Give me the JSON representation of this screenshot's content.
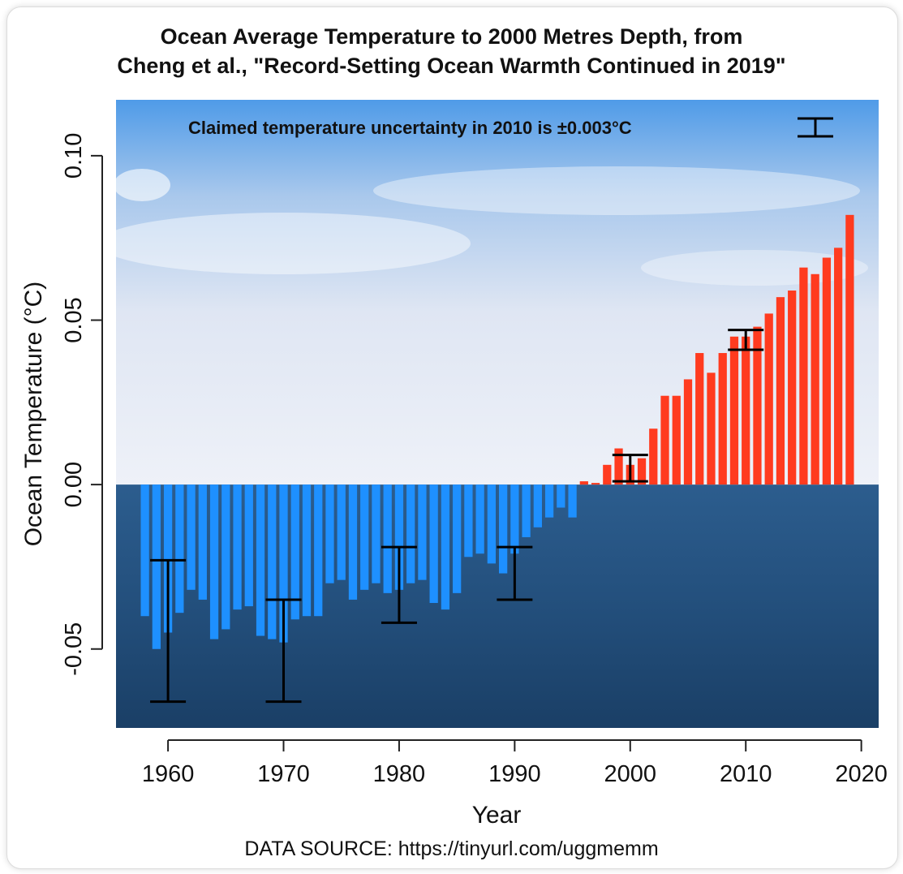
{
  "header": {
    "title_line1": "Ocean Average Temperature to 2000 Metres Depth, from",
    "title_line2": "Cheng et al., \"Record-Setting Ocean Warmth Continued in 2019\""
  },
  "footer": {
    "source": "DATA SOURCE: https://tinyurl.com/uggmemm"
  },
  "chart_data": {
    "type": "bar",
    "xlabel": "Year",
    "ylabel": "Ocean Temperature (°C)",
    "annotation": "Claimed temperature uncertainty in 2010 is ±0.003°C",
    "xlim": [
      1955.5,
      2021.5
    ],
    "ylim": [
      -0.074,
      0.117
    ],
    "xticks": [
      1960,
      1970,
      1980,
      1990,
      2000,
      2010,
      2020
    ],
    "yticks": [
      -0.05,
      0.0,
      0.05,
      0.1
    ],
    "ytick_labels": [
      "-0.05",
      "0.00",
      "0.05",
      "0.10"
    ],
    "colors": {
      "negative": "#1e90ff",
      "positive": "#ff3b1f",
      "error_bar": "#000000",
      "sky_top": "#4f9be8",
      "ocean": "#24507e"
    },
    "years": [
      1958,
      1959,
      1960,
      1961,
      1962,
      1963,
      1964,
      1965,
      1966,
      1967,
      1968,
      1969,
      1970,
      1971,
      1972,
      1973,
      1974,
      1975,
      1976,
      1977,
      1978,
      1979,
      1980,
      1981,
      1982,
      1983,
      1984,
      1985,
      1986,
      1987,
      1988,
      1989,
      1990,
      1991,
      1992,
      1993,
      1994,
      1995,
      1996,
      1997,
      1998,
      1999,
      2000,
      2001,
      2002,
      2003,
      2004,
      2005,
      2006,
      2007,
      2008,
      2009,
      2010,
      2011,
      2012,
      2013,
      2014,
      2015,
      2016,
      2017,
      2018,
      2019
    ],
    "values": [
      -0.04,
      -0.05,
      -0.045,
      -0.039,
      -0.032,
      -0.035,
      -0.047,
      -0.044,
      -0.038,
      -0.037,
      -0.046,
      -0.047,
      -0.048,
      -0.041,
      -0.04,
      -0.04,
      -0.03,
      -0.029,
      -0.035,
      -0.032,
      -0.03,
      -0.033,
      -0.032,
      -0.03,
      -0.029,
      -0.036,
      -0.038,
      -0.033,
      -0.022,
      -0.021,
      -0.024,
      -0.027,
      -0.021,
      -0.016,
      -0.013,
      -0.01,
      -0.007,
      -0.01,
      0.001,
      0.0005,
      0.006,
      0.011,
      0.006,
      0.008,
      0.017,
      0.027,
      0.027,
      0.032,
      0.04,
      0.034,
      0.04,
      0.045,
      0.045,
      0.048,
      0.052,
      0.057,
      0.059,
      0.066,
      0.064,
      0.069,
      0.072,
      0.082
    ],
    "error_bars": [
      {
        "year": 1960,
        "low": -0.066,
        "high": -0.023
      },
      {
        "year": 1970,
        "low": -0.066,
        "high": -0.035
      },
      {
        "year": 1980,
        "low": -0.042,
        "high": -0.019
      },
      {
        "year": 1990,
        "low": -0.035,
        "high": -0.019
      },
      {
        "year": 2000,
        "low": 0.001,
        "high": 0.009
      },
      {
        "year": 2010,
        "low": 0.041,
        "high": 0.047
      }
    ]
  }
}
